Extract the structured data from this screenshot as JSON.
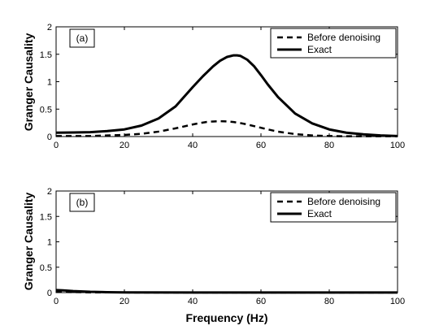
{
  "chart_data": [
    {
      "type": "line",
      "panel_label": "(a)",
      "ylabel": "Granger Causality",
      "xlabel": "",
      "xlim": [
        0,
        100
      ],
      "ylim": [
        0,
        2
      ],
      "xticks": [
        "0",
        "20",
        "40",
        "60",
        "80",
        "100"
      ],
      "yticks": [
        "0",
        "0.5",
        "1",
        "1.5",
        "2"
      ],
      "legend_position": "top-right",
      "grid": false,
      "series": [
        {
          "name": "Before denoising",
          "style": "dashed",
          "x": [
            0,
            5,
            10,
            15,
            20,
            25,
            30,
            35,
            40,
            42,
            44,
            46,
            48,
            50,
            52,
            54,
            56,
            58,
            60,
            62,
            65,
            70,
            75,
            80,
            85,
            90,
            95,
            100
          ],
          "y": [
            0.01,
            0.01,
            0.01,
            0.02,
            0.03,
            0.05,
            0.09,
            0.15,
            0.22,
            0.245,
            0.265,
            0.275,
            0.28,
            0.275,
            0.265,
            0.245,
            0.22,
            0.19,
            0.16,
            0.13,
            0.09,
            0.045,
            0.02,
            0.01,
            0.005,
            0.005,
            0.005,
            0.005
          ]
        },
        {
          "name": "Exact",
          "style": "solid",
          "x": [
            0,
            5,
            10,
            15,
            20,
            25,
            30,
            35,
            40,
            43,
            46,
            48,
            50,
            52,
            53,
            54,
            56,
            58,
            60,
            62,
            65,
            70,
            75,
            80,
            85,
            90,
            95,
            100
          ],
          "y": [
            0.07,
            0.075,
            0.08,
            0.1,
            0.13,
            0.2,
            0.33,
            0.55,
            0.9,
            1.1,
            1.28,
            1.38,
            1.45,
            1.48,
            1.48,
            1.47,
            1.4,
            1.28,
            1.12,
            0.95,
            0.72,
            0.42,
            0.24,
            0.13,
            0.07,
            0.04,
            0.02,
            0.01
          ]
        }
      ]
    },
    {
      "type": "line",
      "panel_label": "(b)",
      "ylabel": "Granger Causality",
      "xlabel": "Frequency (Hz)",
      "xlim": [
        0,
        100
      ],
      "ylim": [
        0,
        2
      ],
      "xticks": [
        "0",
        "20",
        "40",
        "60",
        "80",
        "100"
      ],
      "yticks": [
        "0",
        "0.5",
        "1",
        "1.5",
        "2"
      ],
      "legend_position": "top-right",
      "grid": false,
      "series": [
        {
          "name": "Before denoising",
          "style": "dashed",
          "x": [
            0,
            5,
            10,
            20,
            40,
            60,
            80,
            100
          ],
          "y": [
            0.015,
            0.01,
            0.005,
            0.003,
            0.002,
            0.002,
            0.002,
            0.002
          ]
        },
        {
          "name": "Exact",
          "style": "solid",
          "x": [
            0,
            2,
            5,
            10,
            15,
            20,
            40,
            60,
            80,
            100
          ],
          "y": [
            0.05,
            0.045,
            0.03,
            0.015,
            0.008,
            0.004,
            0.002,
            0.002,
            0.002,
            0.002
          ]
        }
      ]
    }
  ]
}
